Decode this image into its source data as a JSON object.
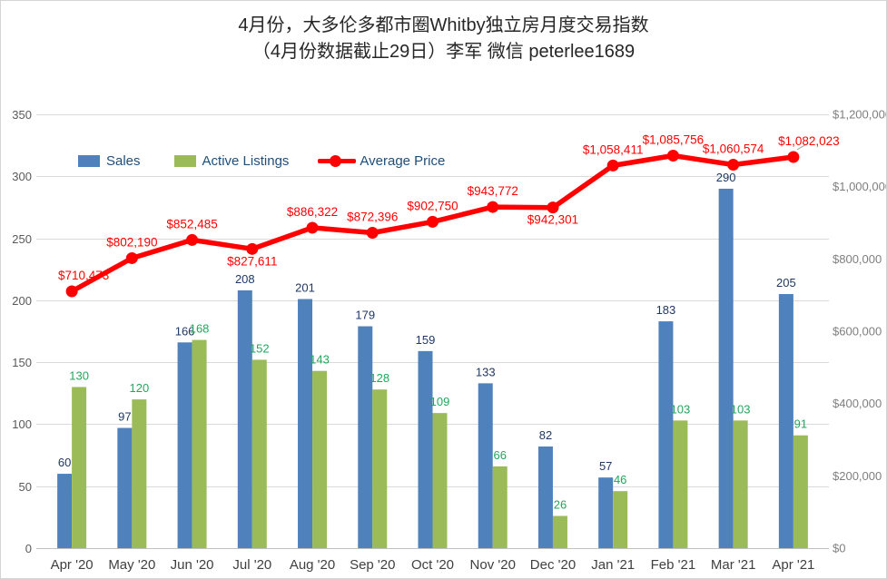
{
  "title": {
    "line1": "4月份，大多伦多都市圈Whitby独立房月度交易指数",
    "line2": "（4月份数据截止29日）李军 微信 peterlee1689"
  },
  "colors": {
    "sales_bar": "#4F81BD",
    "listings_bar": "#9BBB59",
    "price_line": "#FF0000",
    "sales_label": "#1F3864",
    "listings_label": "#21A75C",
    "price_label": "#FF0000",
    "legend_text": "#1F4E79",
    "gridline": "#DADADA",
    "axis_line": "#C0C0C0",
    "left_axis_text": "#595959",
    "right_axis_text": "#7F7F7F",
    "x_axis_text": "#404040"
  },
  "chart_data": {
    "type": "bar+line",
    "title": "4月份，大多伦多都市圈Whitby独立房月度交易指数（4月份数据截止29日）李军 微信 peterlee1689",
    "categories": [
      "Apr '20",
      "May '20",
      "Jun '20",
      "Jul '20",
      "Aug '20",
      "Sep '20",
      "Oct '20",
      "Nov '20",
      "Dec '20",
      "Jan '21",
      "Feb '21",
      "Mar '21",
      "Apr '21"
    ],
    "series": [
      {
        "name": "Sales",
        "type": "bar",
        "axis": "left",
        "color": "#4F81BD",
        "values": [
          60,
          97,
          166,
          208,
          201,
          179,
          159,
          133,
          82,
          57,
          183,
          290,
          205
        ]
      },
      {
        "name": "Active Listings",
        "type": "bar",
        "axis": "left",
        "color": "#9BBB59",
        "values": [
          130,
          120,
          168,
          152,
          143,
          128,
          109,
          66,
          26,
          46,
          103,
          103,
          91
        ]
      },
      {
        "name": "Average Price",
        "type": "line",
        "axis": "right",
        "color": "#FF0000",
        "values": [
          710473,
          802190,
          852485,
          827611,
          886322,
          872396,
          902750,
          943772,
          942301,
          1058411,
          1085756,
          1060574,
          1082023
        ],
        "label_format": "currency",
        "label_positions": [
          "above",
          "above",
          "above",
          "below",
          "above",
          "above",
          "above",
          "above",
          "below",
          "above",
          "above",
          "above",
          "above"
        ]
      }
    ],
    "left_axis": {
      "min": 0,
      "max": 350,
      "step": 50
    },
    "right_axis": {
      "min": 0,
      "max": 1200000,
      "step": 200000,
      "format": "currency"
    },
    "grid": true,
    "legend_position": "top-left-inside"
  }
}
